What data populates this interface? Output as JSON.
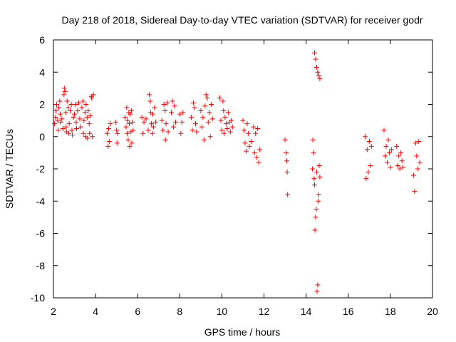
{
  "chart_data": {
    "type": "scatter",
    "title": "Day 218 of 2018, Sidereal Day-to-day VTEC variation (SDTVAR) for receiver godr",
    "xlabel": "GPS time / hours",
    "ylabel": "SDTVAR / TECUs",
    "xlim": [
      2,
      20
    ],
    "ylim": [
      -10,
      6
    ],
    "xticks": [
      2,
      4,
      6,
      8,
      10,
      12,
      14,
      16,
      18,
      20
    ],
    "yticks": [
      -10,
      -8,
      -6,
      -4,
      -2,
      0,
      2,
      4,
      6
    ],
    "xtick_labels": [
      "2",
      "4",
      "6",
      "8",
      "10",
      "12",
      "14",
      "16",
      "18",
      "20"
    ],
    "ytick_labels": [
      "-10",
      "-8",
      "-6",
      "-4",
      "-2",
      "0",
      "2",
      "4",
      "6"
    ],
    "grid": false,
    "marker": "+",
    "color": "#ff0000",
    "series": [
      {
        "name": "SDTVAR",
        "points": [
          [
            2.05,
            0.8
          ],
          [
            2.1,
            1.2
          ],
          [
            2.12,
            1.6
          ],
          [
            2.15,
            2.0
          ],
          [
            2.2,
            1.0
          ],
          [
            2.22,
            0.4
          ],
          [
            2.25,
            1.8
          ],
          [
            2.3,
            2.2
          ],
          [
            2.32,
            1.4
          ],
          [
            2.35,
            0.9
          ],
          [
            2.4,
            1.1
          ],
          [
            2.45,
            0.5
          ],
          [
            2.5,
            2.6
          ],
          [
            2.52,
            3.0
          ],
          [
            2.55,
            2.8
          ],
          [
            2.58,
            1.5
          ],
          [
            2.6,
            0.6
          ],
          [
            2.62,
            0.3
          ],
          [
            2.65,
            2.2
          ],
          [
            2.7,
            1.8
          ],
          [
            2.72,
            0.2
          ],
          [
            2.75,
            0.8
          ],
          [
            2.8,
            1.6
          ],
          [
            2.85,
            2.0
          ],
          [
            2.88,
            0.4
          ],
          [
            2.9,
            0.1
          ],
          [
            2.95,
            1.2
          ],
          [
            3.0,
            1.4
          ],
          [
            3.05,
            2.0
          ],
          [
            3.08,
            0.9
          ],
          [
            3.1,
            0.5
          ],
          [
            3.15,
            1.6
          ],
          [
            3.2,
            2.1
          ],
          [
            3.25,
            1.1
          ],
          [
            3.3,
            0.6
          ],
          [
            3.35,
            1.8
          ],
          [
            3.4,
            2.2
          ],
          [
            3.42,
            0.2
          ],
          [
            3.45,
            1.0
          ],
          [
            3.5,
            1.5
          ],
          [
            3.52,
            0.0
          ],
          [
            3.55,
            2.0
          ],
          [
            3.6,
            1.2
          ],
          [
            3.62,
            -0.1
          ],
          [
            3.65,
            1.6
          ],
          [
            3.7,
            0.8
          ],
          [
            3.72,
            0.2
          ],
          [
            3.75,
            1.3
          ],
          [
            3.8,
            2.5
          ],
          [
            3.82,
            2.4
          ],
          [
            3.85,
            0.0
          ],
          [
            3.9,
            2.6
          ],
          [
            4.55,
            0.2
          ],
          [
            4.6,
            -0.6
          ],
          [
            4.62,
            0.5
          ],
          [
            4.65,
            -0.3
          ],
          [
            4.7,
            0.8
          ],
          [
            4.95,
            0.9
          ],
          [
            5.0,
            0.4
          ],
          [
            5.02,
            -0.4
          ],
          [
            5.05,
            0.2
          ],
          [
            5.4,
            1.2
          ],
          [
            5.45,
            0.6
          ],
          [
            5.48,
            1.8
          ],
          [
            5.5,
            0.2
          ],
          [
            5.52,
            1.0
          ],
          [
            5.55,
            -0.2
          ],
          [
            5.58,
            1.5
          ],
          [
            5.6,
            0.8
          ],
          [
            5.62,
            -0.6
          ],
          [
            5.65,
            1.4
          ],
          [
            5.68,
            0.3
          ],
          [
            5.7,
            1.6
          ],
          [
            5.72,
            -0.4
          ],
          [
            5.75,
            0.9
          ],
          [
            5.78,
            0.4
          ],
          [
            6.2,
            1.2
          ],
          [
            6.25,
            0.2
          ],
          [
            6.3,
            0.9
          ],
          [
            6.4,
            1.1
          ],
          [
            6.5,
            0.4
          ],
          [
            6.55,
            2.6
          ],
          [
            6.6,
            2.2
          ],
          [
            6.62,
            1.5
          ],
          [
            6.65,
            0.8
          ],
          [
            6.7,
            0.2
          ],
          [
            6.72,
            1.4
          ],
          [
            6.75,
            0.6
          ],
          [
            6.8,
            1.8
          ],
          [
            6.85,
            0.9
          ],
          [
            7.15,
            1.0
          ],
          [
            7.2,
            0.4
          ],
          [
            7.25,
            2.0
          ],
          [
            7.3,
            1.6
          ],
          [
            7.32,
            -0.2
          ],
          [
            7.35,
            0.8
          ],
          [
            7.4,
            2.1
          ],
          [
            7.45,
            0.3
          ],
          [
            7.6,
            1.5
          ],
          [
            7.65,
            2.2
          ],
          [
            7.7,
            0.6
          ],
          [
            7.75,
            1.9
          ],
          [
            7.8,
            0.9
          ],
          [
            8.0,
            1.4
          ],
          [
            8.05,
            0.2
          ],
          [
            8.1,
            0.9
          ],
          [
            8.15,
            1.5
          ],
          [
            8.55,
            1.2
          ],
          [
            8.6,
            0.4
          ],
          [
            8.65,
            2.1
          ],
          [
            8.7,
            1.8
          ],
          [
            8.75,
            0.8
          ],
          [
            8.8,
            0.3
          ],
          [
            9.0,
            1.6
          ],
          [
            9.05,
            0.6
          ],
          [
            9.1,
            1.2
          ],
          [
            9.15,
            -0.2
          ],
          [
            9.2,
            1.9
          ],
          [
            9.25,
            2.6
          ],
          [
            9.3,
            2.4
          ],
          [
            9.35,
            0.9
          ],
          [
            9.4,
            1.5
          ],
          [
            9.45,
            0.0
          ],
          [
            9.5,
            2.0
          ],
          [
            9.55,
            1.1
          ],
          [
            9.9,
            2.4
          ],
          [
            9.95,
            1.0
          ],
          [
            10.0,
            0.4
          ],
          [
            10.05,
            2.2
          ],
          [
            10.08,
            1.6
          ],
          [
            10.1,
            0.2
          ],
          [
            10.15,
            1.2
          ],
          [
            10.2,
            0.8
          ],
          [
            10.25,
            0.5
          ],
          [
            10.3,
            1.5
          ],
          [
            10.35,
            0.9
          ],
          [
            10.4,
            0.3
          ],
          [
            10.45,
            1.0
          ],
          [
            10.5,
            0.6
          ],
          [
            11.0,
            1.0
          ],
          [
            11.05,
            0.4
          ],
          [
            11.1,
            -0.4
          ],
          [
            11.15,
            -0.9
          ],
          [
            11.2,
            0.8
          ],
          [
            11.25,
            0.2
          ],
          [
            11.3,
            -0.6
          ],
          [
            11.4,
            -0.3
          ],
          [
            11.5,
            0.6
          ],
          [
            11.55,
            -1.0
          ],
          [
            11.6,
            0.2
          ],
          [
            11.65,
            -1.3
          ],
          [
            11.7,
            0.5
          ],
          [
            11.75,
            -1.6
          ],
          [
            11.8,
            -0.8
          ],
          [
            13.0,
            -0.2
          ],
          [
            13.05,
            -1.0
          ],
          [
            13.08,
            -1.5
          ],
          [
            13.1,
            -2.2
          ],
          [
            13.12,
            -3.6
          ],
          [
            14.3,
            -2.0
          ],
          [
            14.32,
            -0.2
          ],
          [
            14.35,
            -1.0
          ],
          [
            14.38,
            -2.6
          ],
          [
            14.4,
            -3.0
          ],
          [
            14.42,
            -5.8
          ],
          [
            14.45,
            -5.0
          ],
          [
            14.48,
            -4.5
          ],
          [
            14.5,
            -2.2
          ],
          [
            14.52,
            -9.6
          ],
          [
            14.55,
            -9.2
          ],
          [
            14.58,
            -4.0
          ],
          [
            14.6,
            -3.6
          ],
          [
            14.62,
            -1.8
          ],
          [
            14.65,
            -2.5
          ],
          [
            14.4,
            5.2
          ],
          [
            14.45,
            4.8
          ],
          [
            14.5,
            4.3
          ],
          [
            14.55,
            4.0
          ],
          [
            14.6,
            3.8
          ],
          [
            14.65,
            3.6
          ],
          [
            16.8,
            0.0
          ],
          [
            16.85,
            -2.6
          ],
          [
            16.9,
            -0.8
          ],
          [
            16.95,
            -2.2
          ],
          [
            17.0,
            -0.3
          ],
          [
            17.05,
            -1.8
          ],
          [
            17.1,
            -0.6
          ],
          [
            17.7,
            0.4
          ],
          [
            17.75,
            -1.2
          ],
          [
            17.8,
            -0.6
          ],
          [
            17.85,
            -1.6
          ],
          [
            17.9,
            -0.2
          ],
          [
            17.95,
            -1.0
          ],
          [
            18.0,
            -1.9
          ],
          [
            18.05,
            -0.8
          ],
          [
            18.3,
            -0.6
          ],
          [
            18.35,
            -1.8
          ],
          [
            18.4,
            -1.2
          ],
          [
            18.45,
            -2.0
          ],
          [
            18.5,
            -1.0
          ],
          [
            18.55,
            -1.5
          ],
          [
            18.6,
            -1.9
          ],
          [
            19.1,
            -2.4
          ],
          [
            19.15,
            -3.4
          ],
          [
            19.2,
            -0.4
          ],
          [
            19.25,
            -1.2
          ],
          [
            19.3,
            -2.0
          ],
          [
            19.35,
            -0.3
          ],
          [
            19.4,
            -1.6
          ]
        ]
      }
    ]
  }
}
